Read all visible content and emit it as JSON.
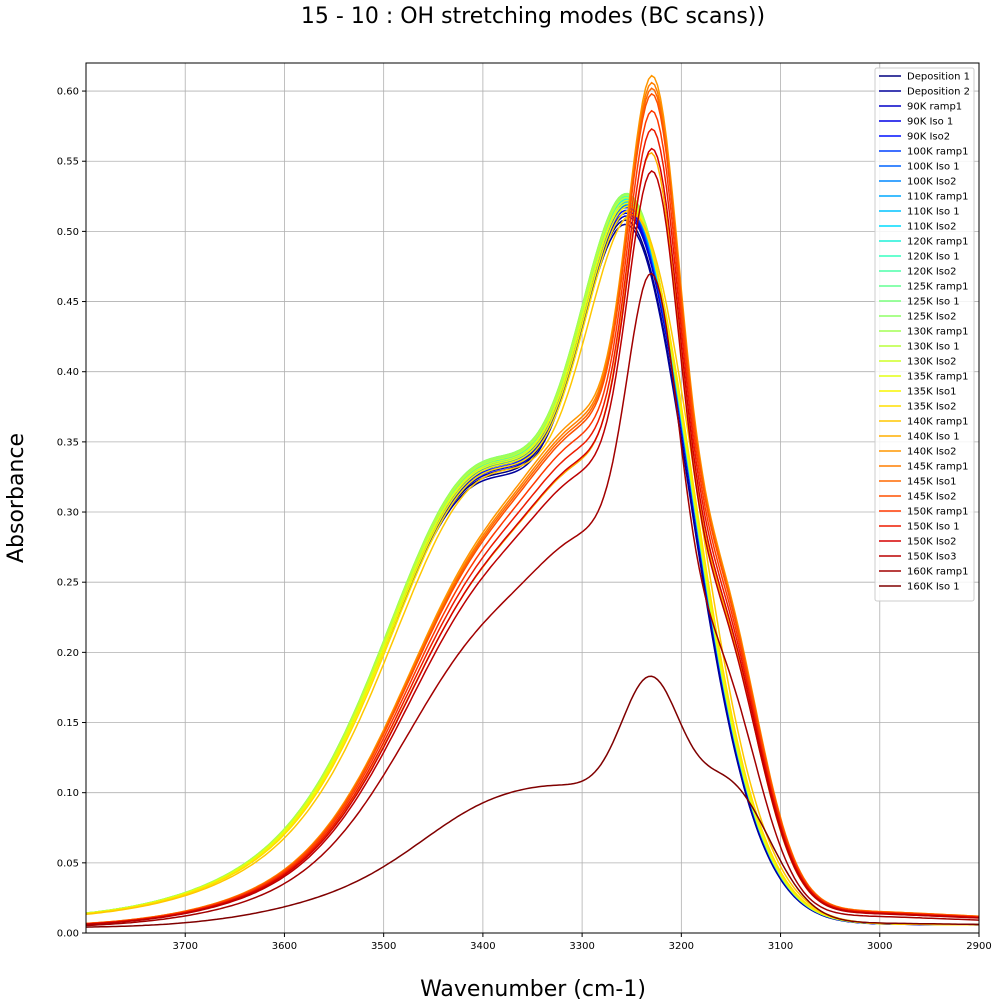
{
  "chart_data": {
    "type": "line",
    "title": "15 - 10 : OH stretching modes (BC scans))",
    "xlabel": "Wavenumber (cm-1)",
    "ylabel": "Absorbance",
    "xlim": [
      3800,
      2900
    ],
    "ylim": [
      0,
      0.62
    ],
    "x_ticks": [
      3700,
      3600,
      3500,
      3400,
      3300,
      3200,
      3100,
      3000,
      2900
    ],
    "y_ticks": [
      0.0,
      0.05,
      0.1,
      0.15,
      0.2,
      0.25,
      0.3,
      0.35,
      0.4,
      0.45,
      0.5,
      0.55,
      0.6
    ],
    "grid": true,
    "legend": "top-right",
    "series": [
      {
        "name": "Deposition 1",
        "color": "#000080",
        "peak": 0.508,
        "peak_x": 3255,
        "family": "A"
      },
      {
        "name": "Deposition 2",
        "color": "#00009b",
        "peak": 0.505,
        "peak_x": 3255,
        "family": "A"
      },
      {
        "name": "90K ramp1",
        "color": "#0000c8",
        "peak": 0.511,
        "peak_x": 3254,
        "family": "A"
      },
      {
        "name": "90K Iso 1",
        "color": "#0000e6",
        "peak": 0.513,
        "peak_x": 3254,
        "family": "A"
      },
      {
        "name": "90K Iso2",
        "color": "#0010ff",
        "peak": 0.515,
        "peak_x": 3254,
        "family": "A"
      },
      {
        "name": "100K ramp1",
        "color": "#0040ff",
        "peak": 0.517,
        "peak_x": 3254,
        "family": "A"
      },
      {
        "name": "100K Iso 1",
        "color": "#0064ff",
        "peak": 0.518,
        "peak_x": 3254,
        "family": "A"
      },
      {
        "name": "100K Iso2",
        "color": "#0088ff",
        "peak": 0.519,
        "peak_x": 3254,
        "family": "A"
      },
      {
        "name": "110K ramp1",
        "color": "#00a8ff",
        "peak": 0.52,
        "peak_x": 3254,
        "family": "A"
      },
      {
        "name": "110K Iso 1",
        "color": "#00c4ff",
        "peak": 0.521,
        "peak_x": 3254,
        "family": "A"
      },
      {
        "name": "110K Iso2",
        "color": "#00dcfe",
        "peak": 0.522,
        "peak_x": 3254,
        "family": "A"
      },
      {
        "name": "120K ramp1",
        "color": "#1ef0d8",
        "peak": 0.523,
        "peak_x": 3254,
        "family": "A"
      },
      {
        "name": "120K Iso 1",
        "color": "#36ffc1",
        "peak": 0.524,
        "peak_x": 3254,
        "family": "A"
      },
      {
        "name": "120K Iso2",
        "color": "#4dffaa",
        "peak": 0.525,
        "peak_x": 3254,
        "family": "A"
      },
      {
        "name": "125K ramp1",
        "color": "#63ff94",
        "peak": 0.526,
        "peak_x": 3254,
        "family": "A"
      },
      {
        "name": "125K Iso 1",
        "color": "#79ff7d",
        "peak": 0.527,
        "peak_x": 3254,
        "family": "A"
      },
      {
        "name": "125K Iso2",
        "color": "#8fff67",
        "peak": 0.527,
        "peak_x": 3254,
        "family": "A"
      },
      {
        "name": "130K ramp1",
        "color": "#a4ff53",
        "peak": 0.526,
        "peak_x": 3254,
        "family": "A"
      },
      {
        "name": "130K Iso 1",
        "color": "#baff3c",
        "peak": 0.524,
        "peak_x": 3254,
        "family": "A"
      },
      {
        "name": "130K Iso2",
        "color": "#cfff27",
        "peak": 0.522,
        "peak_x": 3253,
        "family": "A"
      },
      {
        "name": "135K ramp1",
        "color": "#e4ff13",
        "peak": 0.52,
        "peak_x": 3253,
        "family": "A"
      },
      {
        "name": "135K Iso1",
        "color": "#f8f500",
        "peak": 0.518,
        "peak_x": 3252,
        "family": "A"
      },
      {
        "name": "135K Iso2",
        "color": "#ffdf00",
        "peak": 0.515,
        "peak_x": 3251,
        "family": "A"
      },
      {
        "name": "140K ramp1",
        "color": "#ffc700",
        "peak": 0.512,
        "peak_x": 3248,
        "family": "A"
      },
      {
        "name": "140K Iso 1",
        "color": "#ffaf00",
        "peak": 0.556,
        "peak_x": 3228,
        "family": "B"
      },
      {
        "name": "140K Iso2",
        "color": "#ff9700",
        "peak": 0.611,
        "peak_x": 3227,
        "family": "B"
      },
      {
        "name": "145K ramp1",
        "color": "#ff7f00",
        "peak": 0.606,
        "peak_x": 3227,
        "family": "B"
      },
      {
        "name": "145K Iso1",
        "color": "#ff6800",
        "peak": 0.602,
        "peak_x": 3227,
        "family": "B"
      },
      {
        "name": "145K Iso2",
        "color": "#ff5000",
        "peak": 0.598,
        "peak_x": 3227,
        "family": "B"
      },
      {
        "name": "150K ramp1",
        "color": "#ff3800",
        "peak": 0.586,
        "peak_x": 3227,
        "family": "B"
      },
      {
        "name": "150K Iso 1",
        "color": "#ed1b00",
        "peak": 0.573,
        "peak_x": 3227,
        "family": "B"
      },
      {
        "name": "150K Iso2",
        "color": "#d50000",
        "peak": 0.559,
        "peak_x": 3227,
        "family": "B"
      },
      {
        "name": "150K Iso3",
        "color": "#bc0000",
        "peak": 0.543,
        "peak_x": 3227,
        "family": "B"
      },
      {
        "name": "160K ramp1",
        "color": "#a20000",
        "peak": 0.47,
        "peak_x": 3228,
        "family": "B"
      },
      {
        "name": "160K Iso 1",
        "color": "#800000",
        "peak": 0.183,
        "peak_x": 3228,
        "family": "C"
      }
    ]
  }
}
